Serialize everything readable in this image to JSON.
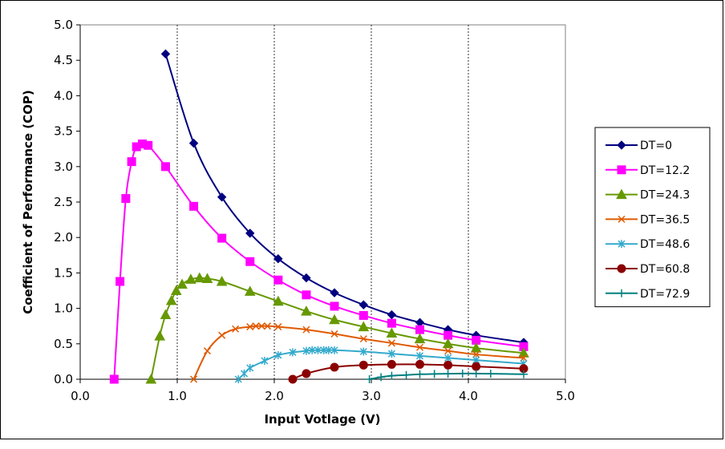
{
  "chart_data": {
    "type": "line",
    "xlabel": "Input Votlage (V)",
    "ylabel": "Coefficient of Performance (COP)",
    "xlim": [
      0.0,
      5.0
    ],
    "ylim": [
      0.0,
      5.0
    ],
    "x_ticks": [
      "0.0",
      "1.0",
      "2.0",
      "3.0",
      "4.0",
      "5.0"
    ],
    "y_ticks": [
      "0.0",
      "0.5",
      "1.0",
      "1.5",
      "2.0",
      "2.5",
      "3.0",
      "3.5",
      "4.0",
      "4.5",
      "5.0"
    ],
    "grid": "vertical dashed gridlines at x ticks",
    "legend_position": "right",
    "series": [
      {
        "name": "DT=0",
        "color": "#000080",
        "marker": "diamond",
        "x": [
          0.88,
          1.17,
          1.46,
          1.75,
          2.04,
          2.33,
          2.62,
          2.92,
          3.21,
          3.5,
          3.79,
          4.08,
          4.57
        ],
        "y": [
          4.59,
          3.33,
          2.57,
          2.06,
          1.7,
          1.43,
          1.22,
          1.05,
          0.91,
          0.8,
          0.7,
          0.62,
          0.52
        ]
      },
      {
        "name": "DT=12.2",
        "color": "#FF00FF",
        "marker": "square",
        "x": [
          0.35,
          0.41,
          0.47,
          0.53,
          0.58,
          0.64,
          0.7,
          0.88,
          1.17,
          1.46,
          1.75,
          2.04,
          2.33,
          2.62,
          2.92,
          3.21,
          3.5,
          3.79,
          4.08,
          4.57
        ],
        "y": [
          0.0,
          1.38,
          2.55,
          3.07,
          3.28,
          3.32,
          3.3,
          3.0,
          2.44,
          1.99,
          1.66,
          1.4,
          1.19,
          1.03,
          0.9,
          0.79,
          0.7,
          0.62,
          0.55,
          0.46
        ]
      },
      {
        "name": "DT=24.3",
        "color": "#669900",
        "marker": "triangle",
        "x": [
          0.73,
          0.82,
          0.88,
          0.94,
          0.99,
          1.05,
          1.14,
          1.23,
          1.31,
          1.46,
          1.75,
          2.04,
          2.33,
          2.62,
          2.92,
          3.21,
          3.5,
          3.79,
          4.08,
          4.57
        ],
        "y": [
          0.0,
          0.61,
          0.91,
          1.11,
          1.25,
          1.34,
          1.41,
          1.43,
          1.42,
          1.38,
          1.24,
          1.1,
          0.96,
          0.84,
          0.74,
          0.65,
          0.57,
          0.5,
          0.44,
          0.37
        ]
      },
      {
        "name": "DT=36.5",
        "color": "#E05A00",
        "marker": "x",
        "x": [
          1.17,
          1.31,
          1.46,
          1.6,
          1.75,
          1.81,
          1.87,
          1.93,
          2.04,
          2.33,
          2.62,
          2.92,
          3.21,
          3.5,
          3.79,
          4.08,
          4.57
        ],
        "y": [
          0.0,
          0.4,
          0.62,
          0.71,
          0.74,
          0.75,
          0.75,
          0.75,
          0.74,
          0.7,
          0.64,
          0.57,
          0.51,
          0.45,
          0.4,
          0.35,
          0.3
        ]
      },
      {
        "name": "DT=48.6",
        "color": "#33AACC",
        "marker": "asterisk",
        "x": [
          1.63,
          1.69,
          1.75,
          1.9,
          2.04,
          2.19,
          2.33,
          2.39,
          2.45,
          2.51,
          2.56,
          2.62,
          2.92,
          3.21,
          3.5,
          3.79,
          4.08,
          4.57
        ],
        "y": [
          0.0,
          0.08,
          0.16,
          0.26,
          0.34,
          0.38,
          0.4,
          0.41,
          0.41,
          0.41,
          0.41,
          0.41,
          0.39,
          0.36,
          0.33,
          0.3,
          0.27,
          0.22
        ]
      },
      {
        "name": "DT=60.8",
        "color": "#8B0000",
        "marker": "circle",
        "x": [
          2.19,
          2.33,
          2.62,
          2.92,
          3.21,
          3.5,
          3.79,
          4.08,
          4.57
        ],
        "y": [
          0.0,
          0.08,
          0.17,
          0.2,
          0.21,
          0.21,
          0.2,
          0.18,
          0.15
        ]
      },
      {
        "name": "DT=72.9",
        "color": "#008080",
        "marker": "plus",
        "x": [
          2.98,
          3.1,
          3.21,
          3.36,
          3.5,
          3.65,
          3.79,
          3.94,
          4.08,
          4.23,
          4.57
        ],
        "y": [
          0.0,
          0.03,
          0.05,
          0.06,
          0.07,
          0.075,
          0.078,
          0.08,
          0.08,
          0.078,
          0.07
        ]
      }
    ]
  }
}
